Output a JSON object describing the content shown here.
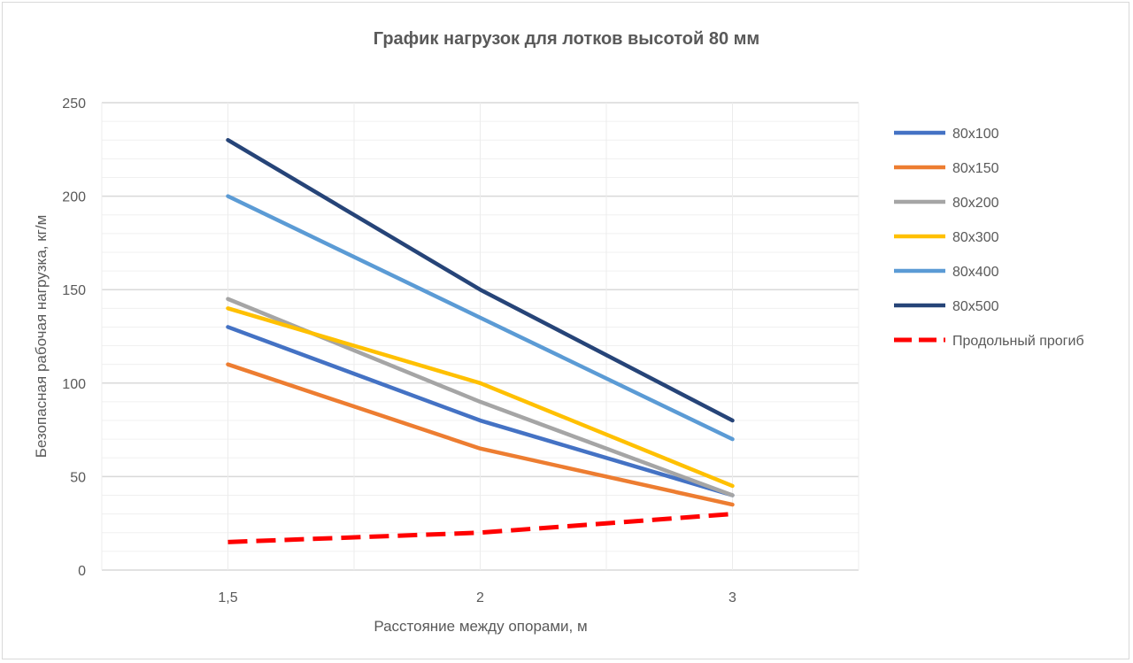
{
  "chart_data": {
    "type": "line",
    "title": "График нагрузок для лотков высотой 80 мм",
    "xlabel": "Расстояние между опорами, м",
    "ylabel": "Безопасная рабочая нагрузка, кг/м",
    "categories": [
      "1,5",
      "2",
      "3"
    ],
    "ylim": [
      0,
      250
    ],
    "yticks": [
      "0",
      "50",
      "100",
      "150",
      "200",
      "250"
    ],
    "grid": true,
    "legend_position": "right",
    "series": [
      {
        "name": "80х100",
        "color": "#4472c4",
        "dashed": false,
        "values": [
          130,
          80,
          40
        ]
      },
      {
        "name": "80х150",
        "color": "#ed7d31",
        "dashed": false,
        "values": [
          110,
          65,
          35
        ]
      },
      {
        "name": "80х200",
        "color": "#a5a5a5",
        "dashed": false,
        "values": [
          145,
          90,
          40
        ]
      },
      {
        "name": "80х300",
        "color": "#ffc000",
        "dashed": false,
        "values": [
          140,
          100,
          45
        ]
      },
      {
        "name": "80х400",
        "color": "#5b9bd5",
        "dashed": false,
        "values": [
          200,
          135,
          70
        ]
      },
      {
        "name": "80х500",
        "color": "#264478",
        "dashed": false,
        "values": [
          230,
          150,
          80
        ]
      },
      {
        "name": "Продольный прогиб",
        "color": "#ff0000",
        "dashed": true,
        "values": [
          15,
          20,
          30
        ]
      }
    ]
  }
}
